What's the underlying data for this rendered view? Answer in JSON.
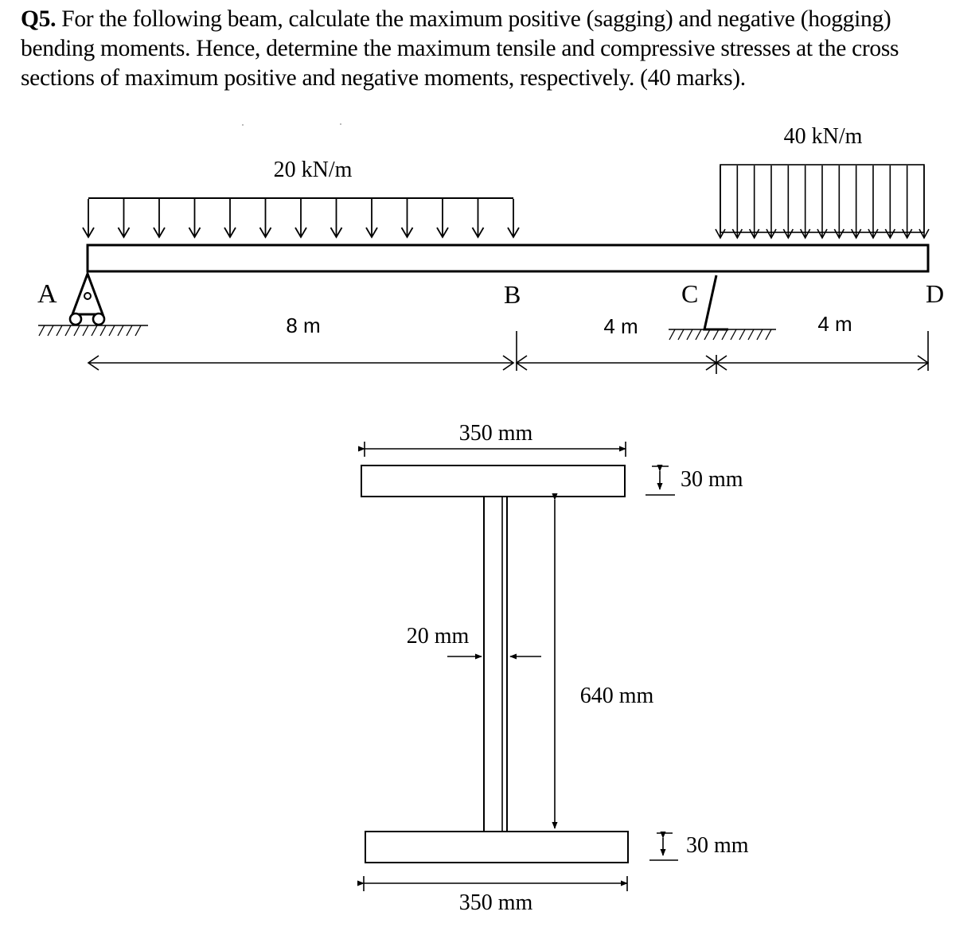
{
  "question": {
    "number": "Q5.",
    "text": "For the following beam, calculate the maximum positive (sagging) and negative (hogging) bending moments. Hence, determine the maximum tensile and compressive stresses at the cross sections of maximum positive and negative moments, respectively. (40 marks)."
  },
  "beam": {
    "load_left": "20 kN/m",
    "load_right": "40 kN/m",
    "points": {
      "a": "A",
      "b": "B",
      "c": "C",
      "d": "D"
    },
    "spans": {
      "ab": "8 m",
      "bc": "4 m",
      "cd": "4 m"
    }
  },
  "section": {
    "top_flange_width": "350 mm",
    "top_flange_thickness": "30 mm",
    "web_thickness": "20 mm",
    "web_height": "640 mm",
    "bottom_flange_thickness": "30 mm",
    "bottom_flange_width": "350 mm"
  }
}
